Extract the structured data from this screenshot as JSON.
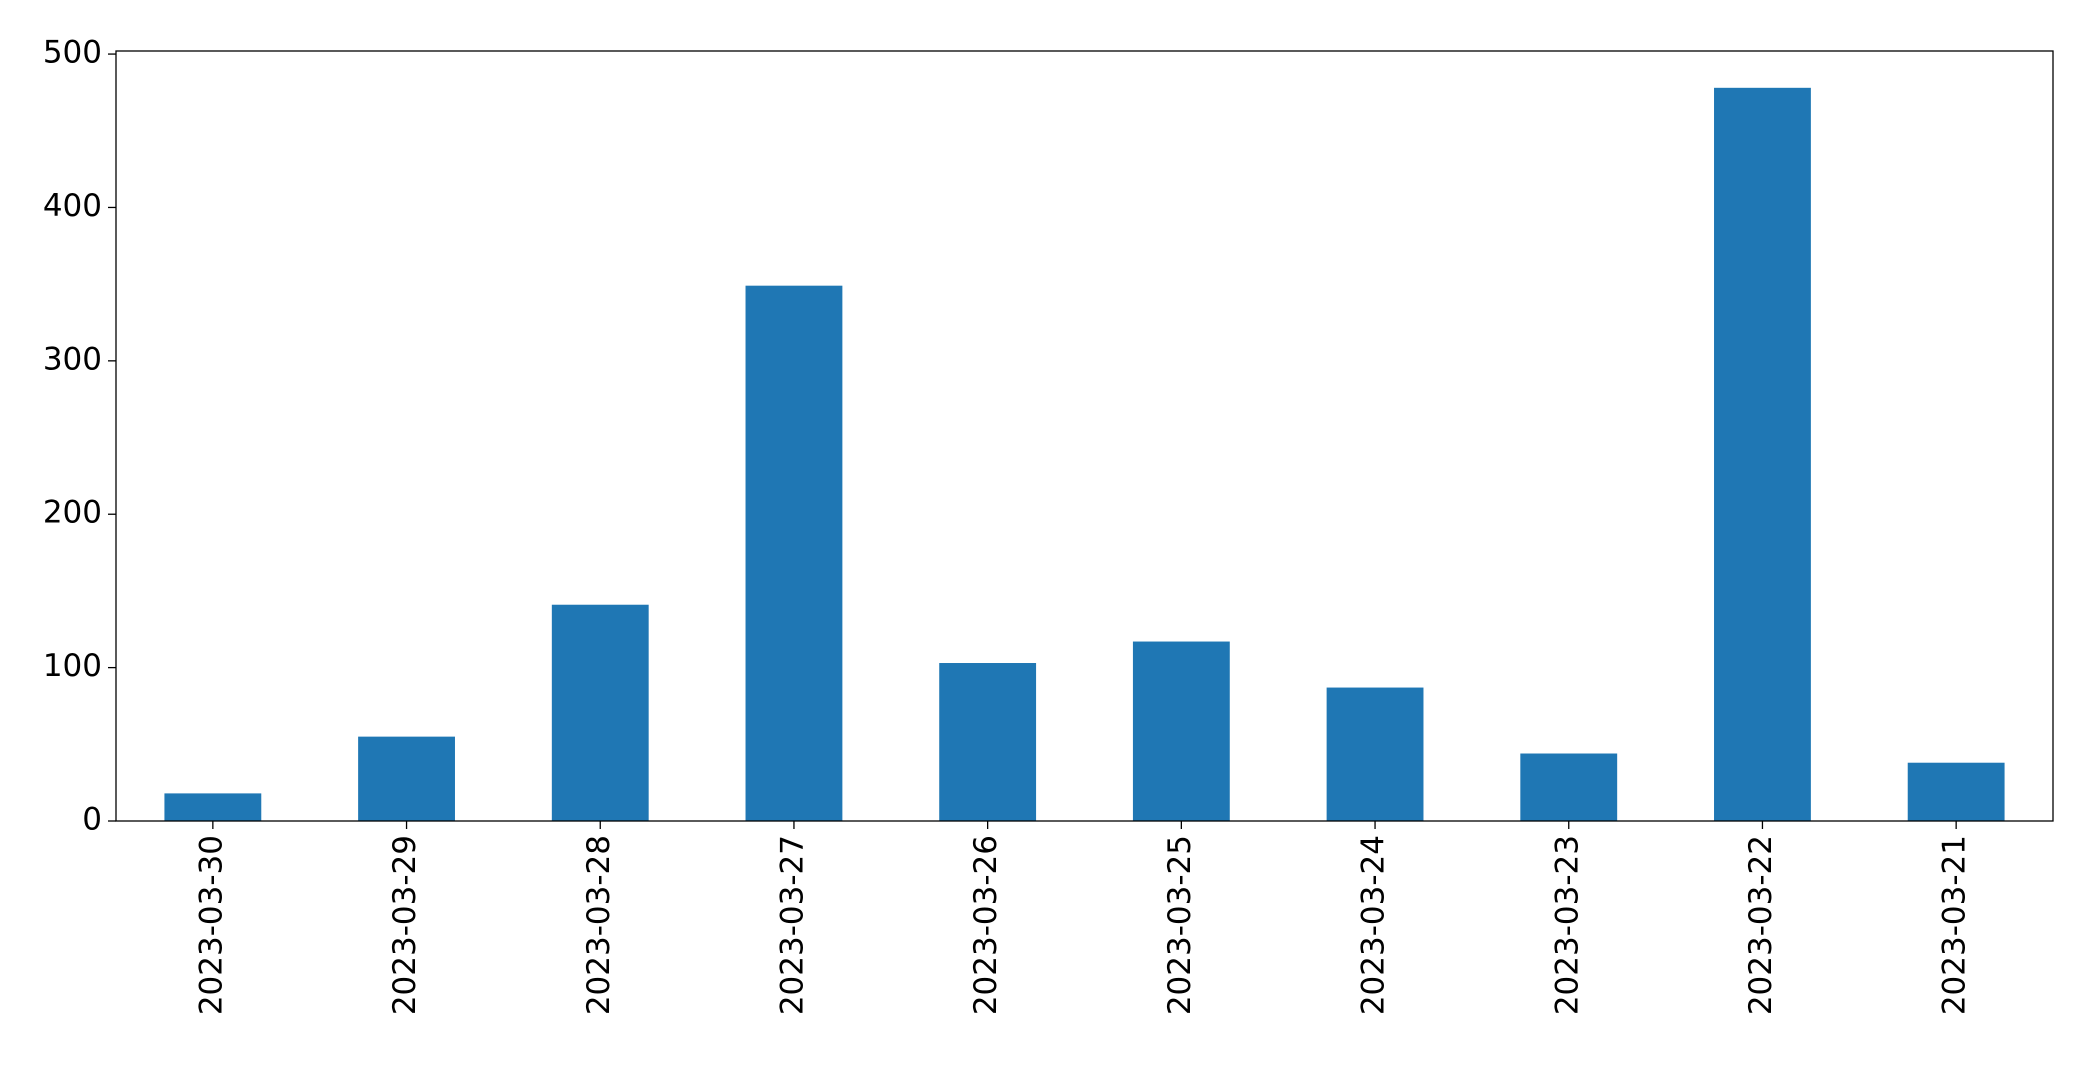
{
  "chart_data": {
    "type": "bar",
    "categories": [
      "2023-03-30",
      "2023-03-29",
      "2023-03-28",
      "2023-03-27",
      "2023-03-26",
      "2023-03-25",
      "2023-03-24",
      "2023-03-23",
      "2023-03-22",
      "2023-03-21"
    ],
    "values": [
      18,
      55,
      141,
      349,
      103,
      117,
      87,
      44,
      478,
      38
    ],
    "color": "#1f77b4",
    "ylim": [
      0,
      502
    ],
    "yticks": [
      0,
      100,
      200,
      300,
      400,
      500
    ],
    "grid": false
  }
}
